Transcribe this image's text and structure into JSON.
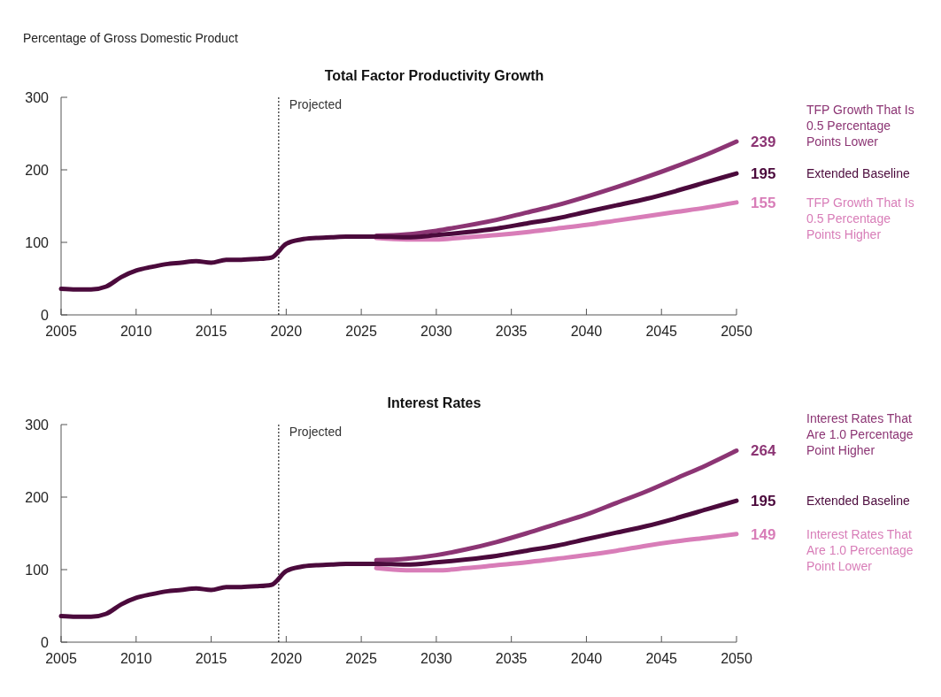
{
  "chart_data": [
    {
      "type": "line",
      "title": "Total Factor Productivity Growth",
      "ylabel": "Percentage of Gross Domestic Product",
      "xlim": [
        2005,
        2050
      ],
      "xticks": [
        2005,
        2010,
        2015,
        2020,
        2025,
        2030,
        2035,
        2040,
        2045,
        2050
      ],
      "ylim": [
        0,
        300
      ],
      "yticks": [
        0,
        100,
        200,
        300
      ],
      "grid": false,
      "ref_lines": [
        {
          "axis": "x",
          "value": 2019.5,
          "label": "Projected",
          "line_style": "dotted",
          "color": "#000000"
        }
      ],
      "series": [
        {
          "name": "Extended Baseline",
          "color": "#4b0a3c",
          "x": [
            2005,
            2006,
            2007,
            2008,
            2009,
            2010,
            2011,
            2012,
            2013,
            2014,
            2015,
            2016,
            2017,
            2018,
            2019,
            2020,
            2021,
            2022,
            2023,
            2024,
            2026,
            2028,
            2030,
            2032,
            2034,
            2036,
            2038,
            2040,
            2042,
            2044,
            2046,
            2048,
            2050
          ],
          "values": [
            36,
            35,
            35,
            39,
            52,
            61,
            66,
            70,
            72,
            74,
            72,
            76,
            76,
            77,
            79,
            98,
            104,
            106,
            107,
            108,
            108,
            107,
            110,
            114,
            119,
            126,
            133,
            142,
            151,
            160,
            171,
            183,
            195
          ],
          "value_labels": [
            null,
            null,
            null,
            null,
            null,
            null,
            null,
            null,
            null,
            null,
            null,
            null,
            null,
            null,
            null,
            null,
            null,
            null,
            null,
            null,
            null,
            null,
            null,
            null,
            null,
            null,
            null,
            null,
            null,
            null,
            null,
            null,
            "195"
          ]
        },
        {
          "name": "TFP Growth That Is 0.5 Percentage Points Lower",
          "color": "#8c3574",
          "x": [
            2026,
            2028,
            2030,
            2032,
            2034,
            2036,
            2038,
            2040,
            2042,
            2044,
            2046,
            2048,
            2050
          ],
          "values": [
            109,
            111,
            116,
            123,
            131,
            141,
            151,
            163,
            176,
            190,
            205,
            221,
            239
          ],
          "value_labels": [
            null,
            null,
            null,
            null,
            null,
            null,
            null,
            null,
            null,
            null,
            null,
            null,
            "239"
          ]
        },
        {
          "name": "TFP Growth That Is 0.5 Percentage Points Higher",
          "color": "#d87db8",
          "x": [
            2026,
            2028,
            2030,
            2032,
            2034,
            2036,
            2038,
            2040,
            2042,
            2044,
            2046,
            2048,
            2050
          ],
          "values": [
            106,
            104,
            104,
            107,
            110,
            114,
            119,
            124,
            130,
            136,
            142,
            148,
            155
          ],
          "value_labels": [
            null,
            null,
            null,
            null,
            null,
            null,
            null,
            null,
            null,
            null,
            null,
            null,
            "155"
          ]
        }
      ]
    },
    {
      "type": "line",
      "title": "Interest Rates",
      "xlim": [
        2005,
        2050
      ],
      "xticks": [
        2005,
        2010,
        2015,
        2020,
        2025,
        2030,
        2035,
        2040,
        2045,
        2050
      ],
      "ylim": [
        0,
        300
      ],
      "yticks": [
        0,
        100,
        200,
        300
      ],
      "grid": false,
      "ref_lines": [
        {
          "axis": "x",
          "value": 2019.5,
          "label": "Projected",
          "line_style": "dotted",
          "color": "#000000"
        }
      ],
      "series": [
        {
          "name": "Extended Baseline",
          "color": "#4b0a3c",
          "x": [
            2005,
            2006,
            2007,
            2008,
            2009,
            2010,
            2011,
            2012,
            2013,
            2014,
            2015,
            2016,
            2017,
            2018,
            2019,
            2020,
            2021,
            2022,
            2023,
            2024,
            2026,
            2028,
            2030,
            2032,
            2034,
            2036,
            2038,
            2040,
            2042,
            2044,
            2046,
            2048,
            2050
          ],
          "values": [
            36,
            35,
            35,
            39,
            52,
            61,
            66,
            70,
            72,
            74,
            72,
            76,
            76,
            77,
            79,
            98,
            104,
            106,
            107,
            108,
            108,
            107,
            110,
            114,
            119,
            126,
            133,
            142,
            151,
            160,
            171,
            183,
            195
          ],
          "value_labels": [
            null,
            null,
            null,
            null,
            null,
            null,
            null,
            null,
            null,
            null,
            null,
            null,
            null,
            null,
            null,
            null,
            null,
            null,
            null,
            null,
            null,
            null,
            null,
            null,
            null,
            null,
            null,
            null,
            null,
            null,
            null,
            null,
            "195"
          ]
        },
        {
          "name": "Interest Rates That Are 1.0 Percentage Point Higher",
          "color": "#8c3574",
          "x": [
            2026,
            2028,
            2030,
            2032,
            2034,
            2036,
            2038,
            2040,
            2042,
            2044,
            2046,
            2048,
            2050
          ],
          "values": [
            113,
            115,
            120,
            128,
            138,
            150,
            163,
            176,
            192,
            208,
            226,
            244,
            264
          ],
          "value_labels": [
            null,
            null,
            null,
            null,
            null,
            null,
            null,
            null,
            null,
            null,
            null,
            null,
            "264"
          ]
        },
        {
          "name": "Interest Rates That Are 1.0 Percentage Point Lower",
          "color": "#d87db8",
          "x": [
            2026,
            2028,
            2030,
            2032,
            2034,
            2036,
            2038,
            2040,
            2042,
            2044,
            2046,
            2048,
            2050
          ],
          "values": [
            102,
            99,
            99,
            102,
            106,
            110,
            115,
            120,
            126,
            133,
            139,
            144,
            149
          ],
          "value_labels": [
            null,
            null,
            null,
            null,
            null,
            null,
            null,
            null,
            null,
            null,
            null,
            null,
            "149"
          ]
        }
      ]
    }
  ]
}
